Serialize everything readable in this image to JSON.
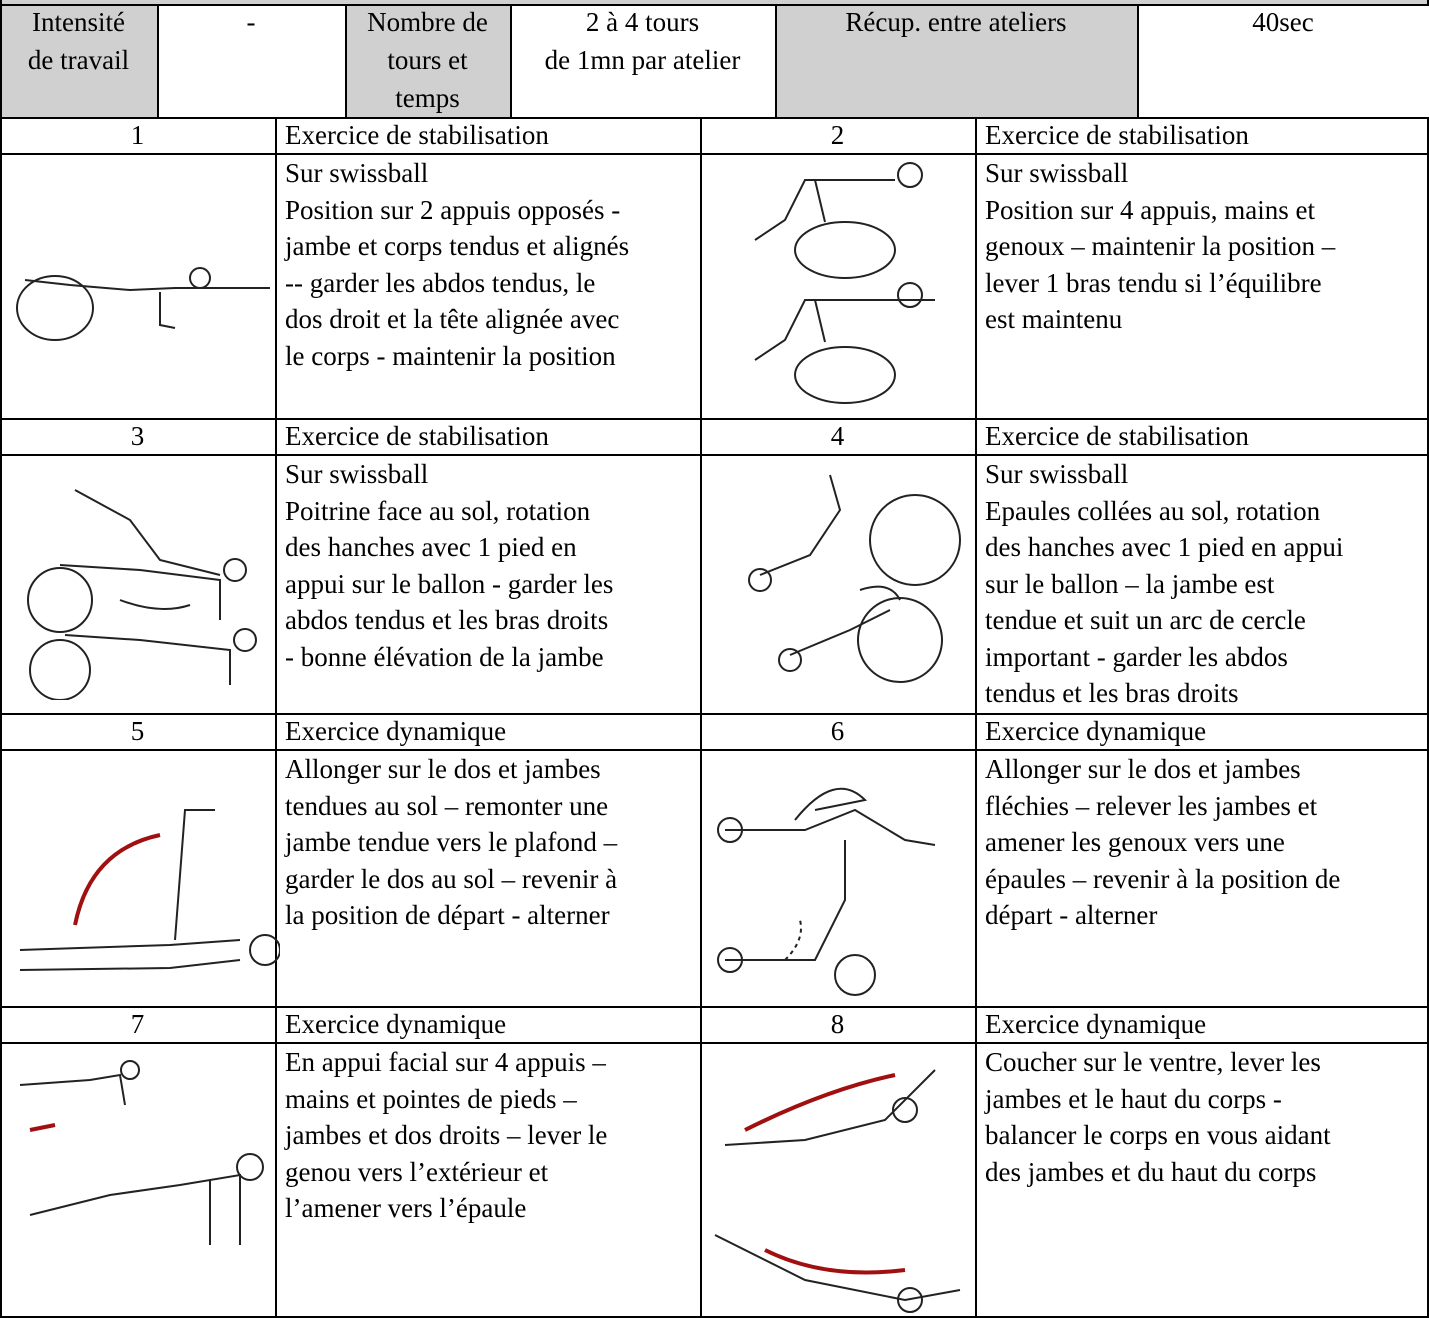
{
  "header": {
    "cells": [
      {
        "lines": [
          "Intensité",
          "de travail"
        ]
      },
      {
        "lines": [
          "-"
        ]
      },
      {
        "lines": [
          "Nombre de",
          "tours et",
          "temps"
        ]
      },
      {
        "lines": [
          "2 à 4 tours",
          "de 1mn par atelier"
        ]
      },
      {
        "lines": [
          "Récup. entre ateliers"
        ]
      },
      {
        "lines": [
          "40sec"
        ]
      }
    ]
  },
  "exercises": [
    {
      "number": "1",
      "category": "Exercice de stabilisation",
      "lines": [
        "Sur swissball",
        "Position sur 2 appuis opposés -",
        "jambe et corps tendus et alignés",
        "-- garder les abdos tendus, le",
        "dos droit et la tête alignée avec",
        "le corps - maintenir la position"
      ]
    },
    {
      "number": "2",
      "category": "Exercice de stabilisation",
      "lines": [
        "Sur swissball",
        "Position sur 4 appuis, mains et",
        "genoux – maintenir la position –",
        "lever 1 bras tendu si l’équilibre",
        "est maintenu"
      ]
    },
    {
      "number": "3",
      "category": "Exercice de stabilisation",
      "lines": [
        "Sur swissball",
        "Poitrine face au sol, rotation",
        "des hanches avec 1 pied en",
        "appui sur le ballon - garder les",
        "abdos tendus et les bras droits",
        "- bonne élévation de la jambe"
      ]
    },
    {
      "number": "4",
      "category": "Exercice de stabilisation",
      "lines": [
        "Sur swissball",
        "Epaules collées au sol, rotation",
        "des hanches avec 1 pied en appui",
        "sur le ballon – la jambe est",
        "tendue et suit un arc de cercle",
        "important - garder les abdos",
        "tendus et les bras droits"
      ]
    },
    {
      "number": "5",
      "category": "Exercice dynamique",
      "lines": [
        "Allonger sur le dos et jambes",
        "tendues au sol – remonter une",
        "jambe tendue vers le plafond –",
        "garder le dos au sol – revenir à",
        "la position de départ - alterner"
      ]
    },
    {
      "number": "6",
      "category": "Exercice dynamique",
      "lines": [
        "Allonger sur le dos et jambes",
        "fléchies – relever les jambes et",
        "amener les genoux vers une",
        "épaules – revenir à la position de",
        "départ - alterner"
      ]
    },
    {
      "number": "7",
      "category": "Exercice dynamique",
      "lines": [
        "En appui facial sur 4 appuis –",
        "mains et pointes de pieds –",
        "jambes et dos droits – lever le",
        "genou vers l’extérieur et",
        "l’amener vers l’épaule"
      ]
    },
    {
      "number": "8",
      "category": "Exercice dynamique",
      "lines": [
        "Coucher sur le ventre, lever les",
        "jambes et le haut du corps -",
        "balancer le corps en vous aidant",
        "des jambes et du haut du corps"
      ]
    }
  ]
}
